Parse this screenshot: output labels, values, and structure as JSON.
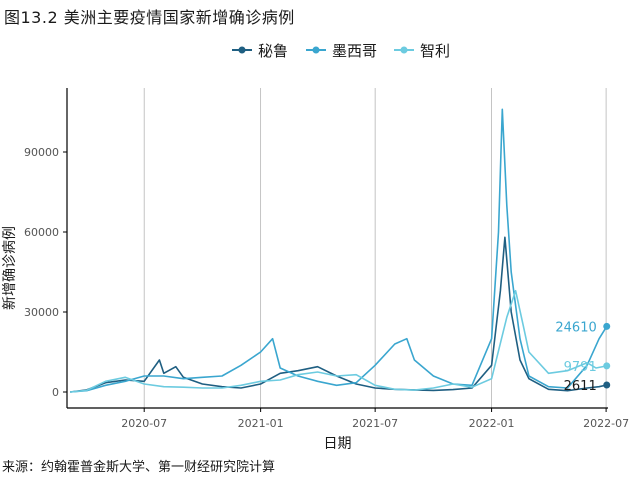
{
  "figure": {
    "title": "图13.2 美洲主要疫情国家新增确诊病例",
    "source": "来源：约翰霍普金斯大学、第一财经研究院计算"
  },
  "colors": {
    "peru": "#1f5f82",
    "mexico": "#3aa6cf",
    "chile": "#6ccbe0"
  },
  "chart_data": {
    "type": "line",
    "xlabel": "日期",
    "ylabel": "新增确诊病例",
    "x_range": [
      "2020-03-01",
      "2022-07-04"
    ],
    "ylim": [
      -6000,
      114000
    ],
    "y_ticks": [
      0,
      30000,
      60000,
      90000
    ],
    "x_ticks": [
      {
        "date": "2020-07-01",
        "label": "2020-07"
      },
      {
        "date": "2021-01-01",
        "label": "2021-01"
      },
      {
        "date": "2021-07-01",
        "label": "2021-07"
      },
      {
        "date": "2022-01-01",
        "label": "2022-01"
      },
      {
        "date": "2022-07-01",
        "label": "2022-07"
      }
    ],
    "grid": "vertical",
    "legend": "top",
    "series": [
      {
        "key": "peru",
        "name": "秘鲁",
        "end_label": "2611",
        "end_value": 2611,
        "points": [
          [
            "2020-03-06",
            0
          ],
          [
            "2020-04-01",
            800
          ],
          [
            "2020-05-01",
            3500
          ],
          [
            "2020-06-01",
            4500
          ],
          [
            "2020-07-01",
            4000
          ],
          [
            "2020-07-25",
            12000
          ],
          [
            "2020-08-01",
            7000
          ],
          [
            "2020-08-20",
            9500
          ],
          [
            "2020-09-01",
            5500
          ],
          [
            "2020-10-01",
            3000
          ],
          [
            "2020-11-01",
            2000
          ],
          [
            "2020-12-01",
            1500
          ],
          [
            "2021-01-01",
            3000
          ],
          [
            "2021-02-01",
            7000
          ],
          [
            "2021-03-01",
            8000
          ],
          [
            "2021-04-01",
            9500
          ],
          [
            "2021-05-01",
            6000
          ],
          [
            "2021-06-01",
            3000
          ],
          [
            "2021-07-01",
            1500
          ],
          [
            "2021-08-01",
            1000
          ],
          [
            "2021-09-01",
            800
          ],
          [
            "2021-10-01",
            600
          ],
          [
            "2021-11-01",
            900
          ],
          [
            "2021-12-01",
            1500
          ],
          [
            "2022-01-01",
            10000
          ],
          [
            "2022-01-15",
            38000
          ],
          [
            "2022-01-22",
            58000
          ],
          [
            "2022-02-01",
            30000
          ],
          [
            "2022-02-15",
            12000
          ],
          [
            "2022-03-01",
            5000
          ],
          [
            "2022-04-01",
            1000
          ],
          [
            "2022-05-01",
            500
          ],
          [
            "2022-06-01",
            1500
          ],
          [
            "2022-06-20",
            2000
          ],
          [
            "2022-07-02",
            2611
          ]
        ]
      },
      {
        "key": "mexico",
        "name": "墨西哥",
        "end_label": "24610",
        "end_value": 24610,
        "points": [
          [
            "2020-03-06",
            0
          ],
          [
            "2020-04-01",
            500
          ],
          [
            "2020-05-01",
            2500
          ],
          [
            "2020-06-01",
            4000
          ],
          [
            "2020-07-01",
            6000
          ],
          [
            "2020-08-01",
            6000
          ],
          [
            "2020-09-01",
            5000
          ],
          [
            "2020-10-01",
            5500
          ],
          [
            "2020-11-01",
            6000
          ],
          [
            "2020-12-01",
            10000
          ],
          [
            "2021-01-01",
            15000
          ],
          [
            "2021-01-20",
            20000
          ],
          [
            "2021-02-01",
            9000
          ],
          [
            "2021-03-01",
            6000
          ],
          [
            "2021-04-01",
            4000
          ],
          [
            "2021-05-01",
            2500
          ],
          [
            "2021-06-01",
            3500
          ],
          [
            "2021-07-01",
            10000
          ],
          [
            "2021-08-01",
            18000
          ],
          [
            "2021-08-20",
            20000
          ],
          [
            "2021-09-01",
            12000
          ],
          [
            "2021-10-01",
            6000
          ],
          [
            "2021-11-01",
            3000
          ],
          [
            "2021-12-01",
            2500
          ],
          [
            "2022-01-01",
            20000
          ],
          [
            "2022-01-12",
            60000
          ],
          [
            "2022-01-18",
            106000
          ],
          [
            "2022-01-25",
            70000
          ],
          [
            "2022-02-01",
            45000
          ],
          [
            "2022-02-15",
            20000
          ],
          [
            "2022-03-01",
            6000
          ],
          [
            "2022-04-01",
            2000
          ],
          [
            "2022-05-01",
            1500
          ],
          [
            "2022-06-01",
            10000
          ],
          [
            "2022-06-20",
            20000
          ],
          [
            "2022-07-02",
            24610
          ]
        ]
      },
      {
        "key": "chile",
        "name": "智利",
        "end_label": "9791",
        "end_value": 9791,
        "points": [
          [
            "2020-03-06",
            0
          ],
          [
            "2020-04-01",
            600
          ],
          [
            "2020-05-01",
            4000
          ],
          [
            "2020-06-01",
            5500
          ],
          [
            "2020-07-01",
            3000
          ],
          [
            "2020-08-01",
            2000
          ],
          [
            "2020-09-01",
            1800
          ],
          [
            "2020-10-01",
            1500
          ],
          [
            "2020-11-01",
            1500
          ],
          [
            "2020-12-01",
            2500
          ],
          [
            "2021-01-01",
            4000
          ],
          [
            "2021-02-01",
            4500
          ],
          [
            "2021-03-01",
            6500
          ],
          [
            "2021-04-01",
            7500
          ],
          [
            "2021-05-01",
            6000
          ],
          [
            "2021-06-01",
            6500
          ],
          [
            "2021-07-01",
            2500
          ],
          [
            "2021-08-01",
            1000
          ],
          [
            "2021-09-01",
            700
          ],
          [
            "2021-10-01",
            1500
          ],
          [
            "2021-11-01",
            3000
          ],
          [
            "2021-12-01",
            1800
          ],
          [
            "2022-01-01",
            5000
          ],
          [
            "2022-01-25",
            28000
          ],
          [
            "2022-02-08",
            38000
          ],
          [
            "2022-02-20",
            25000
          ],
          [
            "2022-03-01",
            15000
          ],
          [
            "2022-04-01",
            7000
          ],
          [
            "2022-05-01",
            8000
          ],
          [
            "2022-06-01",
            11000
          ],
          [
            "2022-06-15",
            9000
          ],
          [
            "2022-07-02",
            9791
          ]
        ]
      }
    ]
  }
}
